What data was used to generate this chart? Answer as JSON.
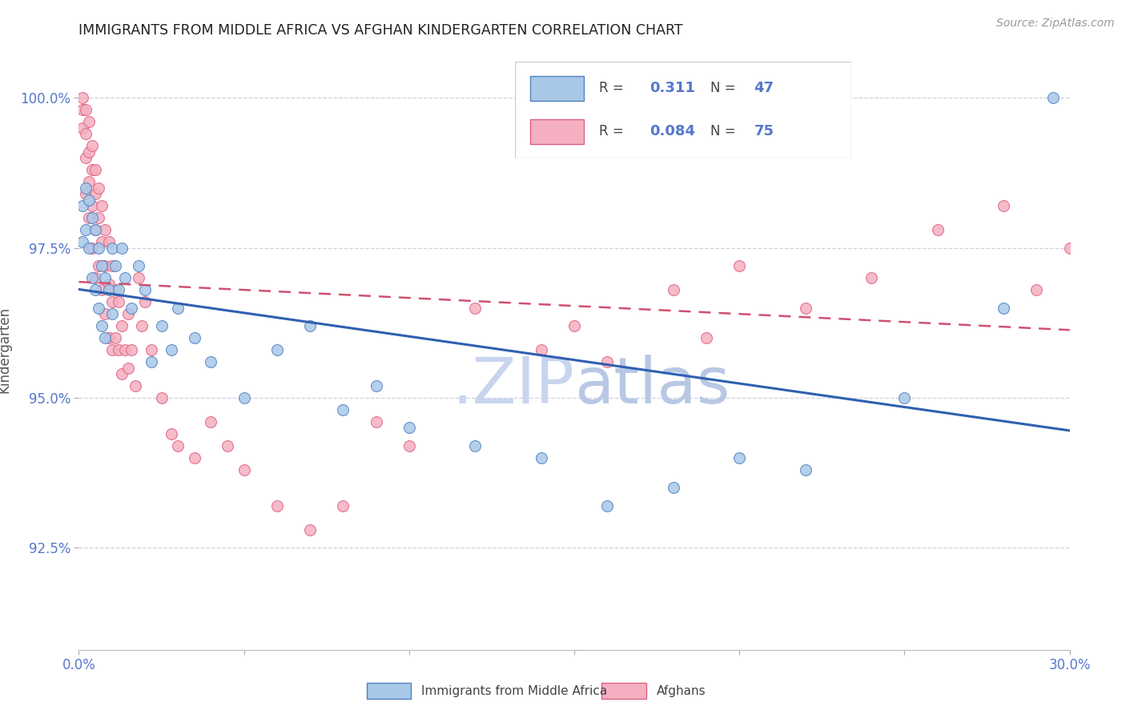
{
  "title": "IMMIGRANTS FROM MIDDLE AFRICA VS AFGHAN KINDERGARTEN CORRELATION CHART",
  "source_text": "Source: ZipAtlas.com",
  "ylabel": "Kindergarten",
  "xlim": [
    0.0,
    0.3
  ],
  "ylim": [
    0.908,
    1.008
  ],
  "xticks": [
    0.0,
    0.05,
    0.1,
    0.15,
    0.2,
    0.25,
    0.3
  ],
  "xticklabels": [
    "0.0%",
    "",
    "",
    "",
    "",
    "",
    "30.0%"
  ],
  "yticks": [
    0.925,
    0.95,
    0.975,
    1.0
  ],
  "yticklabels": [
    "92.5%",
    "95.0%",
    "97.5%",
    "100.0%"
  ],
  "legend_blue_r": "0.311",
  "legend_blue_n": "47",
  "legend_pink_r": "0.084",
  "legend_pink_n": "75",
  "blue_color": "#a8c8e8",
  "pink_color": "#f4b0c0",
  "blue_edge_color": "#5080c0",
  "pink_edge_color": "#e06080",
  "trend_blue_color": "#3060b0",
  "trend_pink_color": "#d05070",
  "axis_tick_color": "#5577cc",
  "grid_color": "#d0d0e0",
  "watermark_zip": "#c8d8f0",
  "watermark_atlas": "#c0cce8",
  "title_color": "#222222",
  "blue_scatter_x": [
    0.001,
    0.001,
    0.002,
    0.002,
    0.003,
    0.003,
    0.004,
    0.004,
    0.005,
    0.005,
    0.006,
    0.006,
    0.007,
    0.007,
    0.008,
    0.008,
    0.009,
    0.01,
    0.01,
    0.011,
    0.012,
    0.013,
    0.014,
    0.016,
    0.018,
    0.02,
    0.022,
    0.025,
    0.028,
    0.03,
    0.035,
    0.04,
    0.05,
    0.06,
    0.07,
    0.08,
    0.09,
    0.1,
    0.12,
    0.14,
    0.16,
    0.18,
    0.2,
    0.22,
    0.25,
    0.28,
    0.295
  ],
  "blue_scatter_y": [
    0.982,
    0.976,
    0.985,
    0.978,
    0.983,
    0.975,
    0.98,
    0.97,
    0.978,
    0.968,
    0.975,
    0.965,
    0.972,
    0.962,
    0.97,
    0.96,
    0.968,
    0.975,
    0.964,
    0.972,
    0.968,
    0.975,
    0.97,
    0.965,
    0.972,
    0.968,
    0.956,
    0.962,
    0.958,
    0.965,
    0.96,
    0.956,
    0.95,
    0.958,
    0.962,
    0.948,
    0.952,
    0.945,
    0.942,
    0.94,
    0.932,
    0.935,
    0.94,
    0.938,
    0.95,
    0.965,
    1.0
  ],
  "pink_scatter_x": [
    0.001,
    0.001,
    0.001,
    0.002,
    0.002,
    0.002,
    0.002,
    0.003,
    0.003,
    0.003,
    0.003,
    0.004,
    0.004,
    0.004,
    0.004,
    0.005,
    0.005,
    0.005,
    0.005,
    0.006,
    0.006,
    0.006,
    0.007,
    0.007,
    0.007,
    0.008,
    0.008,
    0.008,
    0.009,
    0.009,
    0.009,
    0.01,
    0.01,
    0.01,
    0.011,
    0.011,
    0.012,
    0.012,
    0.013,
    0.013,
    0.014,
    0.015,
    0.015,
    0.016,
    0.017,
    0.018,
    0.019,
    0.02,
    0.022,
    0.025,
    0.028,
    0.03,
    0.035,
    0.04,
    0.045,
    0.05,
    0.06,
    0.07,
    0.08,
    0.09,
    0.1,
    0.12,
    0.14,
    0.15,
    0.16,
    0.18,
    0.19,
    0.2,
    0.22,
    0.24,
    0.26,
    0.28,
    0.29,
    0.3,
    0.305
  ],
  "pink_scatter_y": [
    1.0,
    0.998,
    0.995,
    0.998,
    0.994,
    0.99,
    0.984,
    0.996,
    0.991,
    0.986,
    0.98,
    0.992,
    0.988,
    0.982,
    0.975,
    0.988,
    0.984,
    0.978,
    0.97,
    0.985,
    0.98,
    0.972,
    0.982,
    0.976,
    0.968,
    0.978,
    0.972,
    0.964,
    0.976,
    0.969,
    0.96,
    0.972,
    0.966,
    0.958,
    0.968,
    0.96,
    0.966,
    0.958,
    0.962,
    0.954,
    0.958,
    0.964,
    0.955,
    0.958,
    0.952,
    0.97,
    0.962,
    0.966,
    0.958,
    0.95,
    0.944,
    0.942,
    0.94,
    0.946,
    0.942,
    0.938,
    0.932,
    0.928,
    0.932,
    0.946,
    0.942,
    0.965,
    0.958,
    0.962,
    0.956,
    0.968,
    0.96,
    0.972,
    0.965,
    0.97,
    0.978,
    0.982,
    0.968,
    0.975,
    0.972
  ]
}
